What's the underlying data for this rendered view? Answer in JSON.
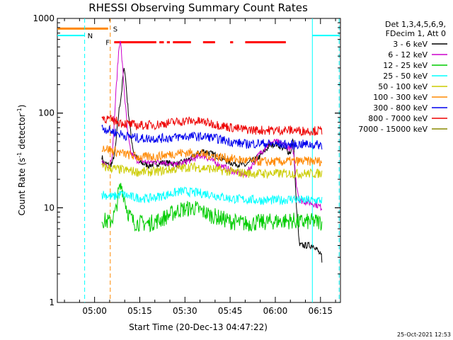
{
  "chart_data": {
    "type": "line",
    "title": "RHESSI Observing Summary Count Rates",
    "xlabel": "Start Time (20-Dec-13 04:47:22)",
    "ylabel_main": "Count Rate (s",
    "ylabel_exp1": "-1",
    "ylabel_mid": " detector",
    "ylabel_exp2": "-1",
    "ylabel_end": ")",
    "yscale": "log",
    "ylim": [
      1,
      1000
    ],
    "xlim_minutes": [
      -12.37,
      81.63
    ],
    "grid": false,
    "x_ticks": [
      {
        "label": "05:00",
        "min": 0
      },
      {
        "label": "05:15",
        "min": 15
      },
      {
        "label": "05:30",
        "min": 30
      },
      {
        "label": "05:45",
        "min": 45
      },
      {
        "label": "06:00",
        "min": 60
      },
      {
        "label": "06:15",
        "min": 75
      }
    ],
    "y_ticks": [
      {
        "label": "1",
        "v": 1
      },
      {
        "label": "10",
        "v": 10
      },
      {
        "label": "100",
        "v": 100
      },
      {
        "label": "1000",
        "v": 1000
      }
    ],
    "legend_header": [
      "Det 1,3,4,5,6,9,",
      "FDecim 1, Att 0"
    ],
    "legend_position": "right",
    "series": [
      {
        "name": "3 - 6 keV",
        "color": "#000000",
        "points": [
          [
            2.4,
            35
          ],
          [
            3,
            30
          ],
          [
            5,
            28
          ],
          [
            6,
            30
          ],
          [
            7,
            45
          ],
          [
            8,
            100
          ],
          [
            9,
            170
          ],
          [
            9.5,
            260
          ],
          [
            10,
            300
          ],
          [
            11,
            120
          ],
          [
            12,
            60
          ],
          [
            13,
            38
          ],
          [
            15,
            30
          ],
          [
            18,
            28
          ],
          [
            22,
            30
          ],
          [
            28,
            29
          ],
          [
            32,
            33
          ],
          [
            36,
            40
          ],
          [
            40,
            36
          ],
          [
            45,
            30
          ],
          [
            50,
            28
          ],
          [
            55,
            35
          ],
          [
            58,
            45
          ],
          [
            60,
            48
          ],
          [
            63,
            42
          ],
          [
            65,
            38
          ],
          [
            66,
            55
          ],
          [
            67,
            10
          ],
          [
            68,
            4
          ],
          [
            73,
            4
          ],
          [
            75.4,
            3
          ],
          [
            75.6,
            2
          ]
        ]
      },
      {
        "name": "6 - 12 keV",
        "color": "#cc00cc",
        "points": [
          [
            2.4,
            30
          ],
          [
            5,
            28
          ],
          [
            6,
            40
          ],
          [
            7,
            150
          ],
          [
            8,
            450
          ],
          [
            8.5,
            620
          ],
          [
            9,
            400
          ],
          [
            10,
            150
          ],
          [
            11,
            60
          ],
          [
            12,
            38
          ],
          [
            14,
            32
          ],
          [
            18,
            30
          ],
          [
            22,
            31
          ],
          [
            27,
            28
          ],
          [
            32,
            32
          ],
          [
            36,
            36
          ],
          [
            40,
            30
          ],
          [
            45,
            25
          ],
          [
            50,
            22
          ],
          [
            55,
            38
          ],
          [
            58,
            48
          ],
          [
            60,
            50
          ],
          [
            63,
            46
          ],
          [
            65,
            42
          ],
          [
            66,
            40
          ],
          [
            67,
            18
          ],
          [
            68,
            12
          ],
          [
            73,
            11
          ],
          [
            75.6,
            10
          ]
        ]
      },
      {
        "name": "12 - 25 keV",
        "color": "#00cc00",
        "points": [
          [
            2.4,
            7.5
          ],
          [
            5,
            7
          ],
          [
            7,
            9
          ],
          [
            8,
            15
          ],
          [
            9,
            17
          ],
          [
            11,
            9
          ],
          [
            13,
            7
          ],
          [
            18,
            6.8
          ],
          [
            22,
            7.5
          ],
          [
            28,
            9.5
          ],
          [
            33,
            10
          ],
          [
            38,
            8.5
          ],
          [
            45,
            7.2
          ],
          [
            50,
            6.8
          ],
          [
            55,
            7
          ],
          [
            60,
            7.2
          ],
          [
            66,
            7.3
          ],
          [
            68,
            7
          ],
          [
            73,
            7.2
          ],
          [
            75.6,
            7
          ]
        ]
      },
      {
        "name": "25 - 50 keV",
        "color": "#00ffff",
        "points": [
          [
            2.4,
            14
          ],
          [
            6,
            13
          ],
          [
            9,
            14
          ],
          [
            12,
            13
          ],
          [
            18,
            12.5
          ],
          [
            23,
            13.5
          ],
          [
            29,
            15
          ],
          [
            33,
            14.5
          ],
          [
            38,
            14
          ],
          [
            45,
            12.5
          ],
          [
            55,
            12
          ],
          [
            62,
            12
          ],
          [
            66,
            12.5
          ],
          [
            68,
            12
          ],
          [
            75.6,
            12
          ]
        ]
      },
      {
        "name": "50 - 100 keV",
        "color": "#cccc00",
        "points": [
          [
            2.4,
            27
          ],
          [
            6,
            26
          ],
          [
            10,
            25
          ],
          [
            14,
            24
          ],
          [
            20,
            24
          ],
          [
            28,
            26
          ],
          [
            32,
            27
          ],
          [
            38,
            26
          ],
          [
            45,
            24
          ],
          [
            52,
            23
          ],
          [
            60,
            23
          ],
          [
            66,
            23
          ],
          [
            68,
            23
          ],
          [
            75.6,
            23
          ]
        ]
      },
      {
        "name": "100 - 300 keV",
        "color": "#ff8800",
        "points": [
          [
            2.4,
            44
          ],
          [
            6,
            40
          ],
          [
            10,
            37
          ],
          [
            15,
            34
          ],
          [
            21,
            35
          ],
          [
            28,
            38
          ],
          [
            32,
            38
          ],
          [
            38,
            36
          ],
          [
            45,
            33
          ],
          [
            52,
            31
          ],
          [
            60,
            30.5
          ],
          [
            66,
            31
          ],
          [
            68,
            31
          ],
          [
            75.6,
            31
          ]
        ]
      },
      {
        "name": "300 - 800 keV",
        "color": "#0000ee",
        "points": [
          [
            2.4,
            70
          ],
          [
            6,
            64
          ],
          [
            10,
            58
          ],
          [
            15,
            54
          ],
          [
            22,
            54
          ],
          [
            28,
            56
          ],
          [
            31,
            57
          ],
          [
            38,
            56
          ],
          [
            45,
            50
          ],
          [
            50,
            47
          ],
          [
            55,
            48
          ],
          [
            60,
            47
          ],
          [
            66,
            46
          ],
          [
            68,
            47
          ],
          [
            75.6,
            46
          ]
        ]
      },
      {
        "name": "800 - 7000 keV",
        "color": "#ee0000",
        "points": [
          [
            2.4,
            90
          ],
          [
            6,
            84
          ],
          [
            10,
            78
          ],
          [
            14,
            74
          ],
          [
            20,
            75
          ],
          [
            26,
            80
          ],
          [
            31,
            83
          ],
          [
            36,
            81
          ],
          [
            42,
            74
          ],
          [
            48,
            68
          ],
          [
            54,
            66
          ],
          [
            60,
            66
          ],
          [
            66,
            66
          ],
          [
            68,
            65
          ],
          [
            75.6,
            65
          ]
        ]
      },
      {
        "name": "7000 - 15000 keV",
        "color": "#888800",
        "points": []
      }
    ],
    "annotations": {
      "saa": {
        "label": "S",
        "color": "#ff8800",
        "start_min": -12.37,
        "end_min": 5.2,
        "level": 780,
        "line_min": 5.2
      },
      "night": {
        "label": "N",
        "color": "#00ffff",
        "seg1": [
          -12.37,
          -3.3
        ],
        "seg2": [
          72.3,
          81.2
        ],
        "level": 660,
        "lines_min": [
          -3.3,
          72.3,
          81.2
        ]
      },
      "flare": {
        "label": "F",
        "color": "#ff0000",
        "start_min": 6.5,
        "end_min": 63.5,
        "level": 560,
        "segments": [
          [
            6.5,
            20.5
          ],
          [
            21.5,
            23
          ],
          [
            24,
            25
          ],
          [
            26,
            32
          ],
          [
            36,
            40
          ],
          [
            45,
            46
          ],
          [
            50,
            63.5
          ]
        ]
      }
    },
    "datestamp": "25-Oct-2021 12:53"
  }
}
